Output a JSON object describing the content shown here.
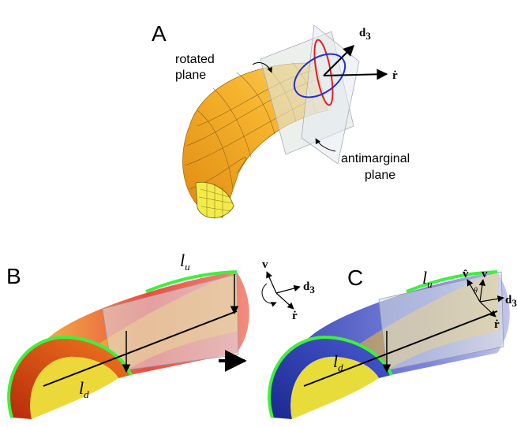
{
  "panel_a": {
    "label": "A",
    "rotated_plane": [
      "rotated",
      "plane"
    ],
    "antimarginal_plane": [
      "antimarginal",
      "plane"
    ],
    "d3": {
      "base": "d",
      "sub": "3"
    },
    "r_dot": "ṙ"
  },
  "panel_b": {
    "label": "B",
    "l_u": {
      "base": "l",
      "sub": "u"
    },
    "l_d": {
      "base": "l",
      "sub": "d"
    },
    "v": "v",
    "d3": {
      "base": "d",
      "sub": "3"
    },
    "r_dot": "ṙ"
  },
  "panel_c": {
    "label": "C",
    "l_u": {
      "base": "l",
      "sub": "u"
    },
    "l_d": {
      "base": "l",
      "sub": "d"
    },
    "v_hat": "v̂",
    "v": "v",
    "theta": "θ",
    "d3": {
      "base": "d",
      "sub": "3"
    },
    "r_dot": "ṙ"
  }
}
